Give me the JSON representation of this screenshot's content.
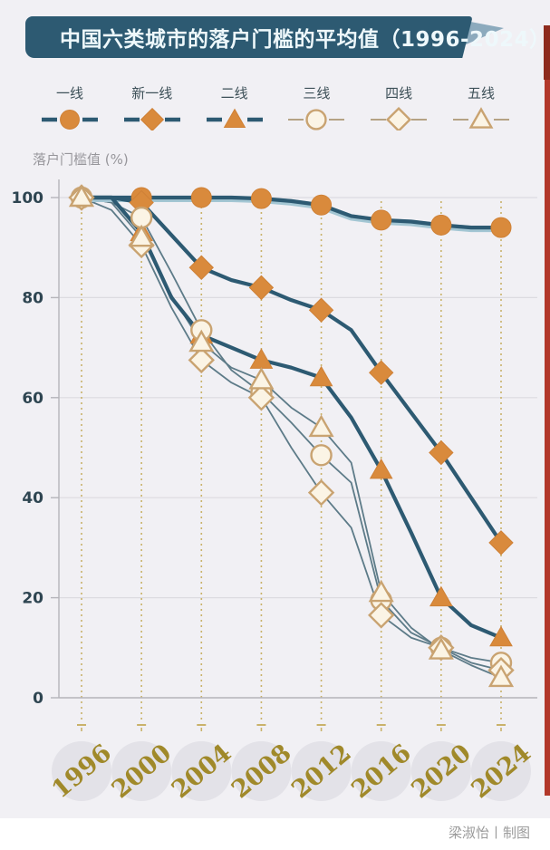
{
  "header": {
    "title": "中国六类城市的落户门槛的平均值（1996-2024）"
  },
  "footer": {
    "credit": "梁淑怡丨制图"
  },
  "colors": {
    "background": "#f1f0f4",
    "banner": "#2d5a72",
    "banner_arrow": "#8caabd",
    "accent_orange": "#d98a3c",
    "accent_orange_edge": "#cf8136",
    "thick_line": "#2d5a72",
    "thick_line_glow": "#a3c6d3",
    "thin_line": "#5d7b88",
    "open_marker_fill": "#fbf4e5",
    "open_marker_stroke": "#c9a371",
    "dashed_guide": "#c9b26a",
    "grid": "#dcdbe0",
    "spine": "#b5b4ba",
    "tick_text": "#2e4551",
    "year_text": "#a0892a",
    "year_bubble": "#e3e2e8",
    "legend_open_line": "#b5a284",
    "red_strip": "#b2382a"
  },
  "chart_data": {
    "type": "line",
    "title": "中国六类城市的落户门槛的平均值（1996-2024）",
    "ylabel": "落户门槛值 (%)",
    "xlabel": "",
    "ylim": [
      0,
      100
    ],
    "yticks": [
      0,
      20,
      40,
      60,
      80,
      100
    ],
    "xticks": [
      "1996",
      "2000",
      "2004",
      "2008",
      "2012",
      "2016",
      "2020",
      "2024"
    ],
    "marker_years": [
      1996,
      2000,
      2004,
      2008,
      2012,
      2016,
      2020,
      2024
    ],
    "grid": "horizontal",
    "legend_position": "top",
    "x": [
      1996,
      1998,
      2000,
      2002,
      2004,
      2006,
      2008,
      2010,
      2012,
      2014,
      2016,
      2018,
      2020,
      2022,
      2024
    ],
    "series": [
      {
        "name": "一线",
        "marker": "circle-filled",
        "line": "thick",
        "values": [
          100,
          100,
          100,
          100,
          100,
          100,
          99.8,
          99.3,
          98.5,
          96.3,
          95.5,
          95.2,
          94.5,
          94,
          94
        ]
      },
      {
        "name": "新一线",
        "marker": "diamond-filled",
        "line": "thick",
        "values": [
          100,
          100,
          99,
          92.5,
          86,
          83.5,
          82,
          79.5,
          77.5,
          73.5,
          65,
          57,
          49,
          40,
          31
        ]
      },
      {
        "name": "二线",
        "marker": "triangle-filled",
        "line": "thick",
        "values": [
          100,
          100,
          93,
          80,
          72.5,
          70,
          67.5,
          66,
          64,
          56,
          45.5,
          33,
          20,
          14.5,
          12
        ]
      },
      {
        "name": "三线",
        "marker": "circle-open",
        "line": "thin",
        "values": [
          100,
          99,
          96,
          85,
          73.5,
          65.5,
          61,
          55,
          48.5,
          43,
          19.5,
          13,
          10,
          8,
          7
        ]
      },
      {
        "name": "四线",
        "marker": "diamond-open",
        "line": "thin",
        "values": [
          100,
          97.5,
          90.5,
          78,
          67.5,
          63,
          60,
          50,
          41,
          34,
          16.5,
          12,
          10,
          7,
          5.5
        ]
      },
      {
        "name": "五线",
        "marker": "triangle-open",
        "line": "thin",
        "values": [
          100,
          99,
          92,
          80.5,
          71,
          66,
          63.5,
          58,
          54,
          47,
          21,
          14,
          9.5,
          6.5,
          4
        ]
      }
    ]
  }
}
